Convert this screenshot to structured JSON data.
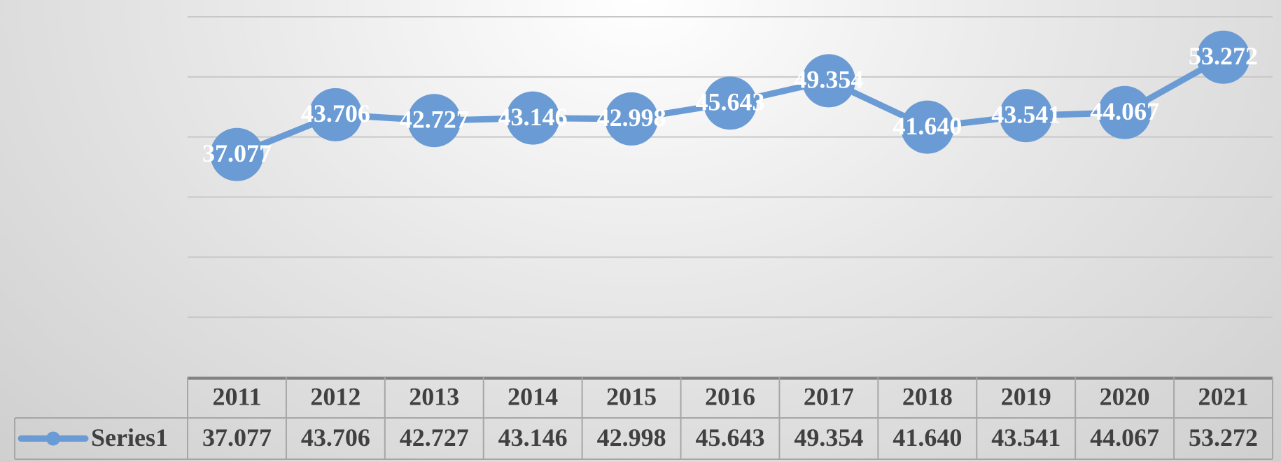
{
  "chart_data": {
    "type": "line",
    "categories": [
      "2011",
      "2012",
      "2013",
      "2014",
      "2015",
      "2016",
      "2017",
      "2018",
      "2019",
      "2020",
      "2021"
    ],
    "series": [
      {
        "name": "Series1",
        "color": "#6a9bd4",
        "values": [
          37.077,
          43.706,
          42.727,
          43.146,
          42.998,
          45.643,
          49.354,
          41.64,
          43.541,
          44.067,
          53.272
        ],
        "value_labels": [
          "37.077",
          "43.706",
          "42.727",
          "43.146",
          "42.998",
          "45.643",
          "49.354",
          "41.640",
          "43.541",
          "44.067",
          "53.272"
        ]
      }
    ],
    "ylim": [
      0,
      60
    ],
    "yticks": [
      0,
      10,
      20,
      30,
      40,
      50,
      60
    ],
    "grid": true,
    "data_table": true
  }
}
